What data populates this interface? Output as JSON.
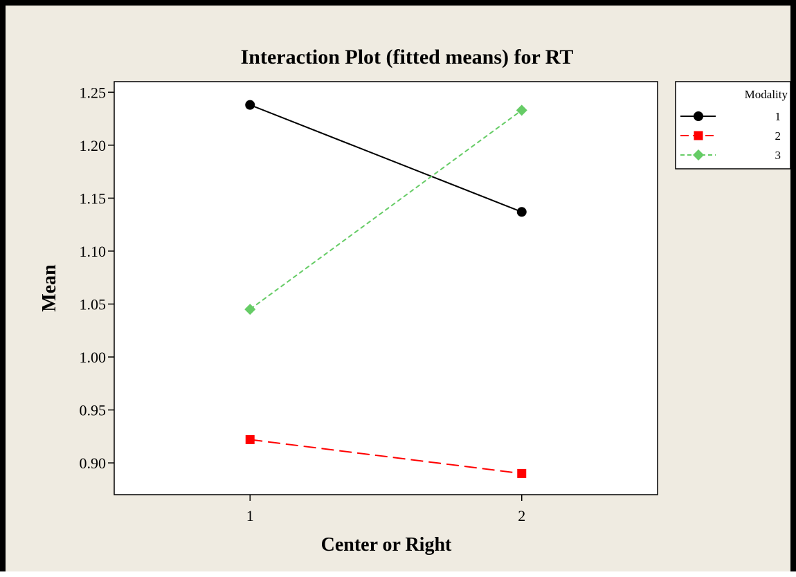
{
  "chart_data": {
    "type": "line",
    "title": "Interaction Plot (fitted means) for RT",
    "xlabel": "Center or Right",
    "ylabel": "Mean",
    "x": [
      "1",
      "2"
    ],
    "xlim": [
      0.5,
      2.5
    ],
    "ylim": [
      0.87,
      1.26
    ],
    "yticks": [
      "0.90",
      "0.95",
      "1.00",
      "1.05",
      "1.10",
      "1.15",
      "1.20",
      "1.25"
    ],
    "grid": false,
    "legend": {
      "title": "Modality",
      "placement": "right"
    },
    "series": [
      {
        "name": "1",
        "values": [
          1.238,
          1.137
        ],
        "color": "#000000",
        "marker": "circle",
        "line": "solid"
      },
      {
        "name": "2",
        "values": [
          0.922,
          0.89
        ],
        "color": "#ff0000",
        "marker": "square",
        "line": "dashed"
      },
      {
        "name": "3",
        "values": [
          1.045,
          1.233
        ],
        "color": "#66cc66",
        "marker": "diamond",
        "line": "dashed"
      }
    ]
  }
}
